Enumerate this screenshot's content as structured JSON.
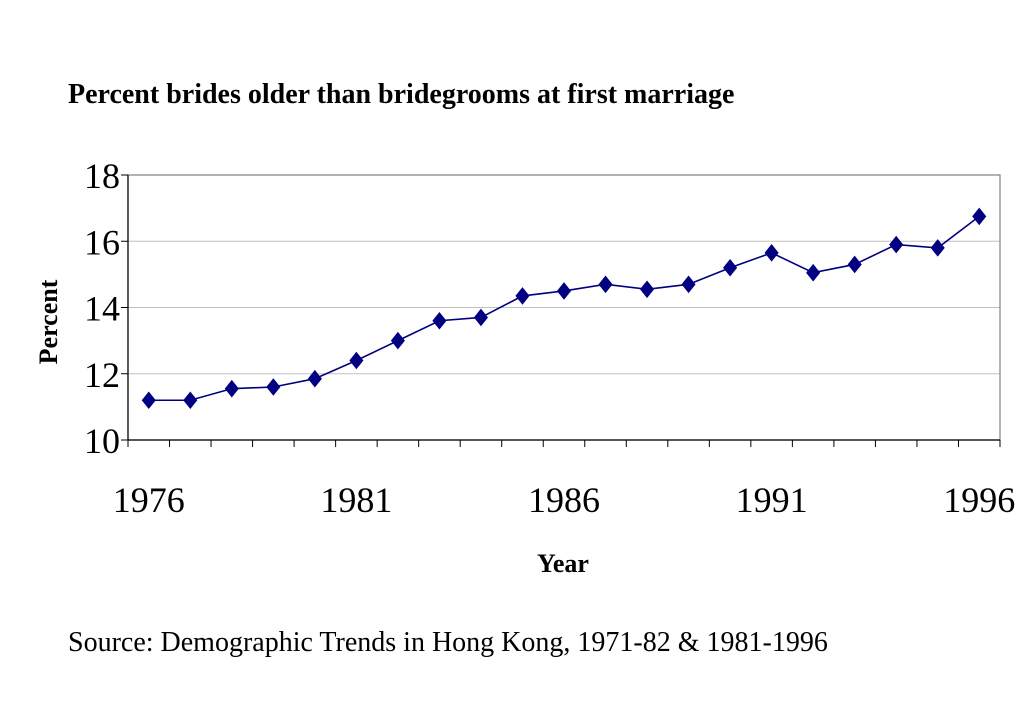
{
  "source": "Source: Demographic Trends in Hong Kong, 1971-82 & 1981-1996",
  "colors": {
    "series": "#000080",
    "grid": "#c0c0c0",
    "frame": "#808080",
    "axis": "#000000"
  },
  "chart_data": {
    "type": "line",
    "title": "Percent brides older than bridegrooms at first marriage",
    "xlabel": "Year",
    "ylabel": "Percent",
    "xlim": [
      1975.5,
      1996.5
    ],
    "ylim": [
      10,
      18
    ],
    "x_ticks": [
      1976,
      1981,
      1986,
      1991,
      1996
    ],
    "y_ticks": [
      10,
      12,
      14,
      16,
      18
    ],
    "grid": true,
    "legend": "none",
    "marker": "diamond",
    "x": [
      1976,
      1977,
      1978,
      1979,
      1980,
      1981,
      1982,
      1983,
      1984,
      1985,
      1986,
      1987,
      1988,
      1989,
      1990,
      1991,
      1992,
      1993,
      1994,
      1995,
      1996
    ],
    "series": [
      {
        "values": [
          11.2,
          11.2,
          11.55,
          11.6,
          11.85,
          12.4,
          13.0,
          13.6,
          13.7,
          14.35,
          14.5,
          14.7,
          14.55,
          14.7,
          15.2,
          15.65,
          15.05,
          15.3,
          15.9,
          15.8,
          16.75
        ]
      }
    ]
  }
}
